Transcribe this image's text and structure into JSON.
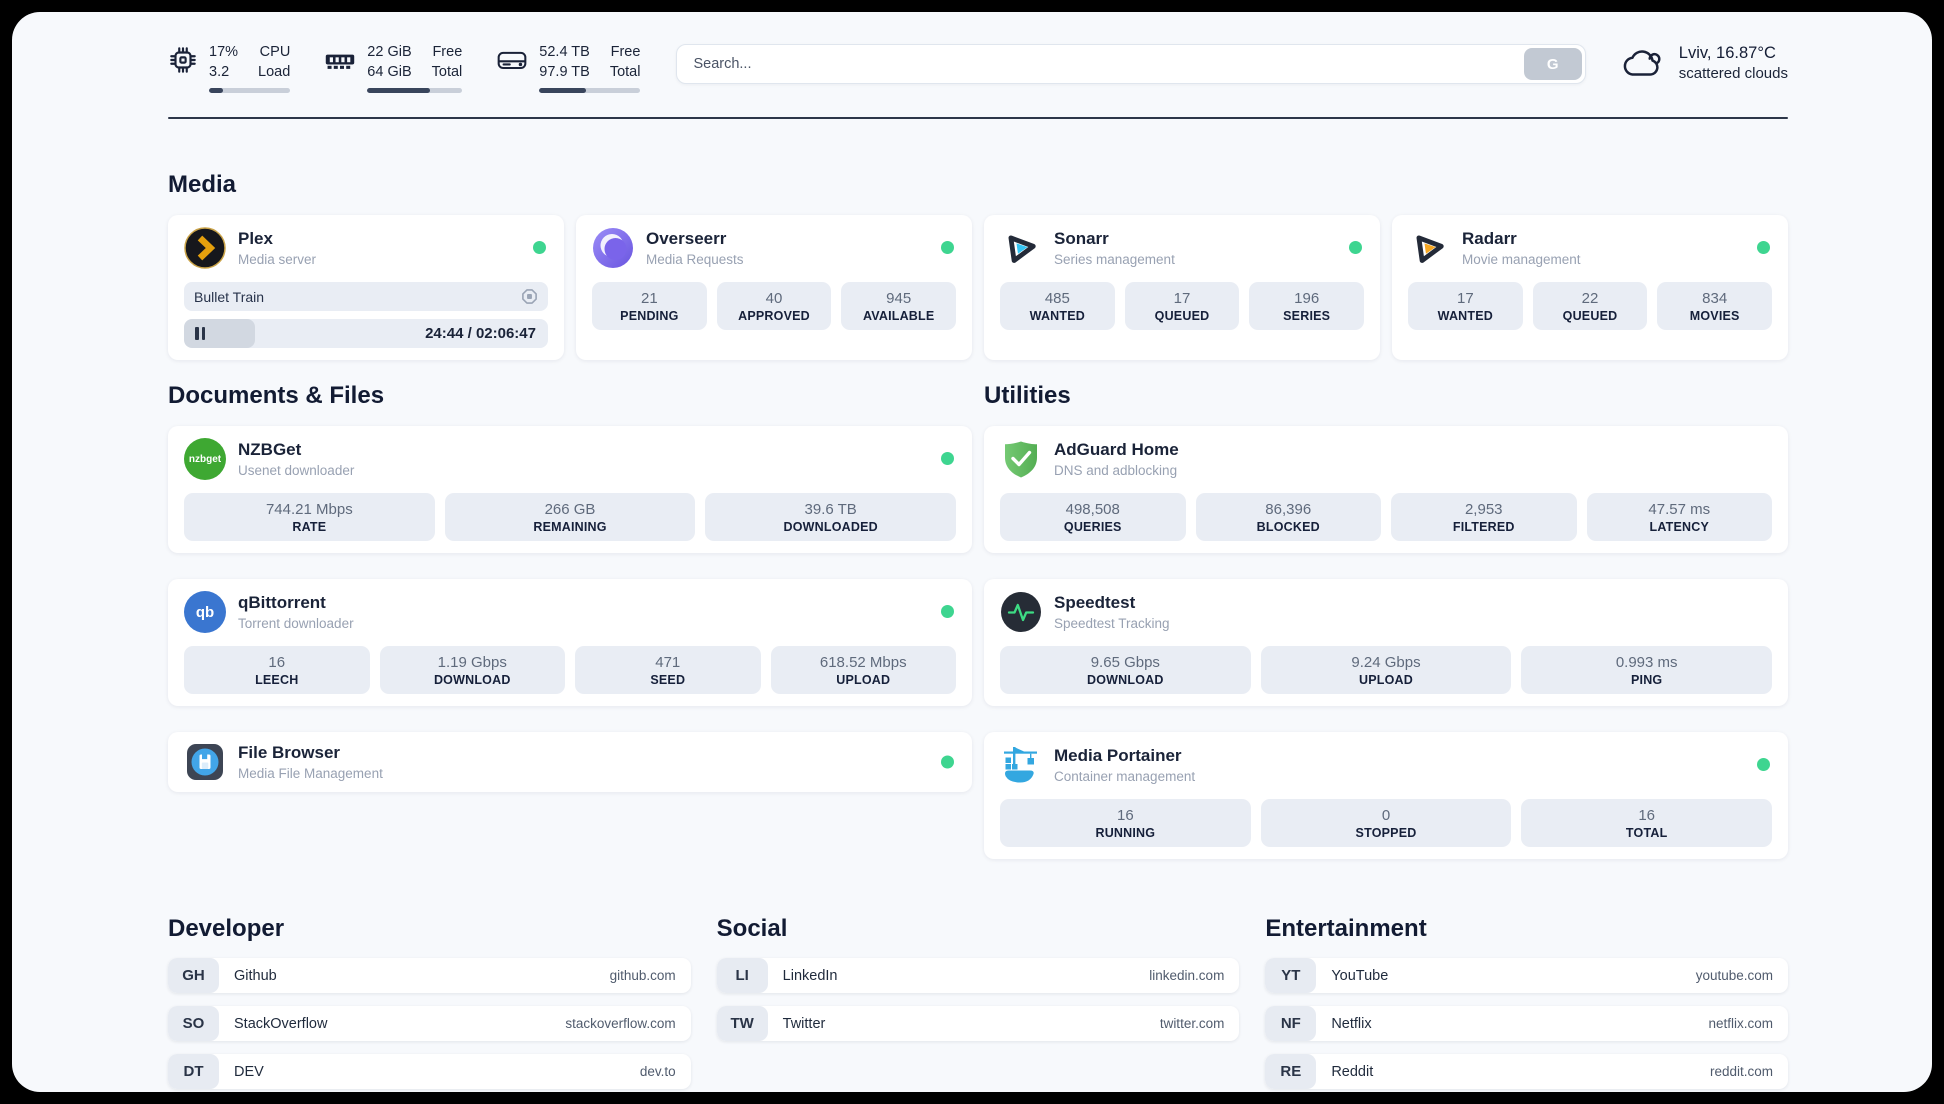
{
  "topbar": {
    "cpu": {
      "value_top": "17%",
      "value_bottom": "3.2",
      "label_top": "CPU",
      "label_bottom": "Load",
      "progress_pct": 17
    },
    "memory": {
      "value_top": "22 GiB",
      "value_bottom": "64 GiB",
      "label_top": "Free",
      "label_bottom": "Total",
      "progress_pct": 66
    },
    "storage": {
      "value_top": "52.4 TB",
      "value_bottom": "97.9 TB",
      "label_top": "Free",
      "label_bottom": "Total",
      "progress_pct": 46
    },
    "search": {
      "placeholder": "Search...",
      "button_label": "G"
    },
    "weather": {
      "location_temp": "Lviv, 16.87°C",
      "condition": "scattered clouds"
    }
  },
  "sections": {
    "media": "Media",
    "documents": "Documents & Files",
    "utilities": "Utilities",
    "developer": "Developer",
    "social": "Social",
    "entertainment": "Entertainment"
  },
  "apps": {
    "plex": {
      "name": "Plex",
      "subtitle": "Media server",
      "now_playing": "Bullet Train",
      "time_display": "24:44 / 02:06:47",
      "progress_pct": 19.5
    },
    "overseerr": {
      "name": "Overseerr",
      "subtitle": "Media Requests",
      "stats": [
        {
          "value": "21",
          "label": "PENDING"
        },
        {
          "value": "40",
          "label": "APPROVED"
        },
        {
          "value": "945",
          "label": "AVAILABLE"
        }
      ]
    },
    "sonarr": {
      "name": "Sonarr",
      "subtitle": "Series management",
      "stats": [
        {
          "value": "485",
          "label": "WANTED"
        },
        {
          "value": "17",
          "label": "QUEUED"
        },
        {
          "value": "196",
          "label": "SERIES"
        }
      ]
    },
    "radarr": {
      "name": "Radarr",
      "subtitle": "Movie management",
      "stats": [
        {
          "value": "17",
          "label": "WANTED"
        },
        {
          "value": "22",
          "label": "QUEUED"
        },
        {
          "value": "834",
          "label": "MOVIES"
        }
      ]
    },
    "nzbget": {
      "name": "NZBGet",
      "subtitle": "Usenet downloader",
      "icon_text": "nzbget",
      "stats": [
        {
          "value": "744.21 Mbps",
          "label": "RATE"
        },
        {
          "value": "266 GB",
          "label": "REMAINING"
        },
        {
          "value": "39.6 TB",
          "label": "DOWNLOADED"
        }
      ]
    },
    "qbittorrent": {
      "name": "qBittorrent",
      "subtitle": "Torrent downloader",
      "icon_text": "qb",
      "stats": [
        {
          "value": "16",
          "label": "LEECH"
        },
        {
          "value": "1.19 Gbps",
          "label": "DOWNLOAD"
        },
        {
          "value": "471",
          "label": "SEED"
        },
        {
          "value": "618.52 Mbps",
          "label": "UPLOAD"
        }
      ]
    },
    "filebrowser": {
      "name": "File Browser",
      "subtitle": "Media File Management"
    },
    "adguard": {
      "name": "AdGuard Home",
      "subtitle": "DNS and adblocking",
      "stats": [
        {
          "value": "498,508",
          "label": "QUERIES"
        },
        {
          "value": "86,396",
          "label": "BLOCKED"
        },
        {
          "value": "2,953",
          "label": "FILTERED"
        },
        {
          "value": "47.57 ms",
          "label": "LATENCY"
        }
      ]
    },
    "speedtest": {
      "name": "Speedtest",
      "subtitle": "Speedtest Tracking",
      "stats": [
        {
          "value": "9.65 Gbps",
          "label": "DOWNLOAD"
        },
        {
          "value": "9.24 Gbps",
          "label": "UPLOAD"
        },
        {
          "value": "0.993 ms",
          "label": "PING"
        }
      ]
    },
    "portainer": {
      "name": "Media Portainer",
      "subtitle": "Container management",
      "stats": [
        {
          "value": "16",
          "label": "RUNNING"
        },
        {
          "value": "0",
          "label": "STOPPED"
        },
        {
          "value": "16",
          "label": "TOTAL"
        }
      ]
    }
  },
  "links": {
    "developer": [
      {
        "tag": "GH",
        "name": "Github",
        "url": "github.com"
      },
      {
        "tag": "SO",
        "name": "StackOverflow",
        "url": "stackoverflow.com"
      },
      {
        "tag": "DT",
        "name": "DEV",
        "url": "dev.to"
      }
    ],
    "social": [
      {
        "tag": "LI",
        "name": "LinkedIn",
        "url": "linkedin.com"
      },
      {
        "tag": "TW",
        "name": "Twitter",
        "url": "twitter.com"
      }
    ],
    "entertainment": [
      {
        "tag": "YT",
        "name": "YouTube",
        "url": "youtube.com"
      },
      {
        "tag": "NF",
        "name": "Netflix",
        "url": "netflix.com"
      },
      {
        "tag": "RE",
        "name": "Reddit",
        "url": "reddit.com"
      }
    ]
  },
  "colors": {
    "status_online": "#3ed590",
    "progress_fill": "#39455c",
    "plex": "#e5a00d",
    "sonarr": "#35c5f4",
    "radarr": "#f6a723",
    "nzbget": "#3ea832",
    "qbittorrent": "#3a76d0",
    "adguard": "#5fbb57",
    "speedtest": "#3ddc84",
    "portainer": "#33a7e0",
    "filebrowser": "#42a5e8"
  }
}
